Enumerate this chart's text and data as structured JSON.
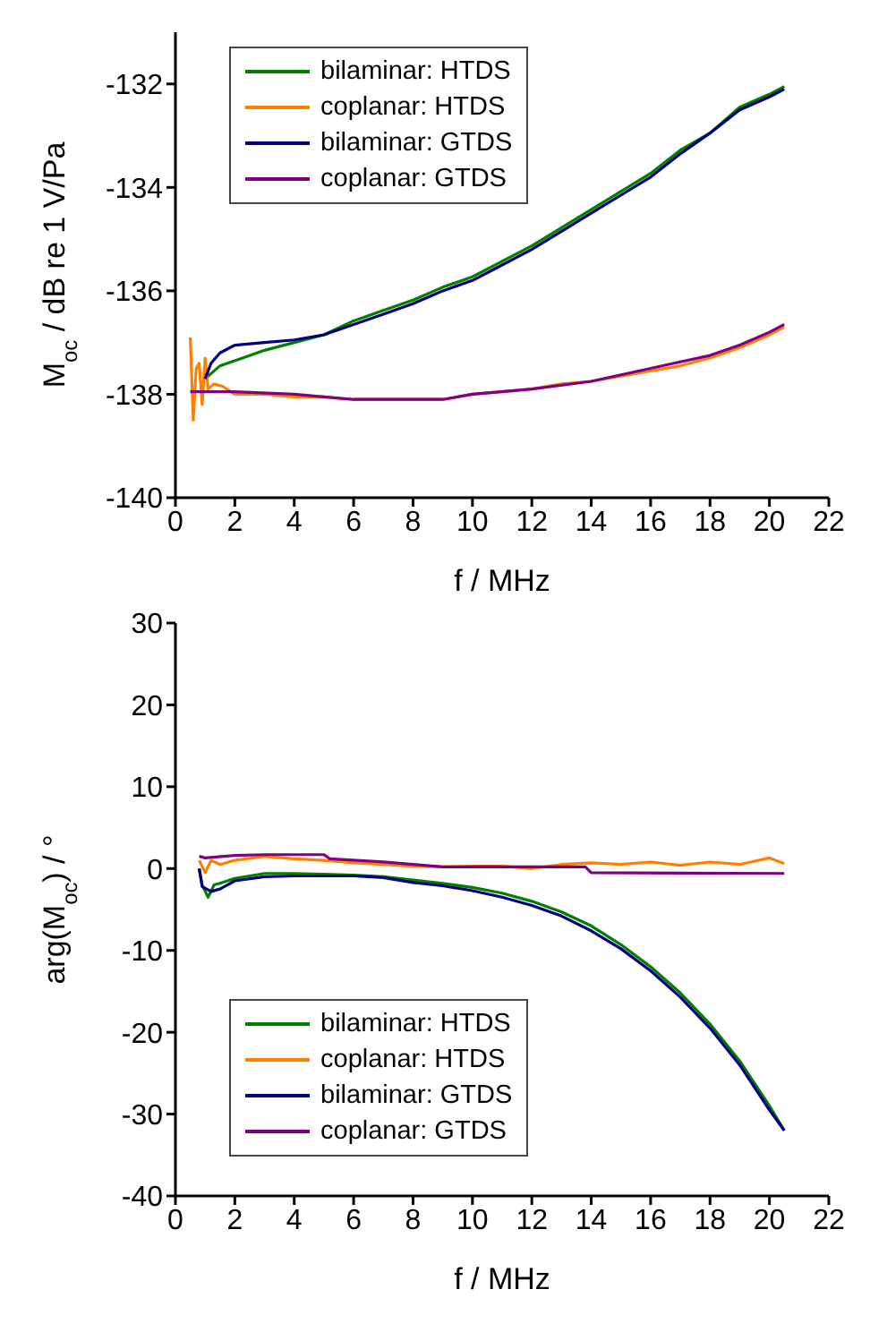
{
  "chart_data": [
    {
      "type": "line",
      "xlabel": "f / MHz",
      "ylabel": "M$_{oc}$ / dB re 1 V/Pa",
      "xlim": [
        0,
        22
      ],
      "xticks": [
        0,
        2,
        4,
        6,
        8,
        10,
        12,
        14,
        16,
        18,
        20,
        22
      ],
      "ylim": [
        -140,
        -131
      ],
      "yticks": [
        -140,
        -138,
        -136,
        -134,
        -132
      ],
      "legend": "top left",
      "series": [
        {
          "name": "bilaminar: HTDS",
          "color": "#008000",
          "x": [
            1.0,
            1.5,
            2,
            3,
            4,
            5,
            6,
            7,
            8,
            9,
            10,
            11,
            12,
            13,
            14,
            15,
            16,
            17,
            18,
            19,
            20,
            20.5
          ],
          "values": [
            -137.7,
            -137.45,
            -137.35,
            -137.15,
            -137.0,
            -136.85,
            -136.58,
            -136.38,
            -136.18,
            -135.93,
            -135.73,
            -135.43,
            -135.13,
            -134.78,
            -134.43,
            -134.08,
            -133.73,
            -133.28,
            -132.95,
            -132.45,
            -132.2,
            -132.05
          ]
        },
        {
          "name": "coplanar: HTDS",
          "color": "#ff8000",
          "x": [
            0.5,
            0.6,
            0.7,
            0.8,
            0.9,
            1.0,
            1.1,
            1.3,
            1.6,
            2,
            3,
            4,
            5,
            6,
            8,
            9,
            10,
            11,
            12,
            13,
            14,
            15,
            16,
            17,
            18,
            19,
            20,
            20.5
          ],
          "values": [
            -136.9,
            -138.5,
            -137.5,
            -137.4,
            -138.2,
            -137.3,
            -137.9,
            -137.8,
            -137.85,
            -138.0,
            -138.0,
            -138.05,
            -138.05,
            -138.1,
            -138.1,
            -138.1,
            -138.0,
            -137.95,
            -137.9,
            -137.8,
            -137.75,
            -137.65,
            -137.55,
            -137.45,
            -137.3,
            -137.1,
            -136.85,
            -136.7
          ]
        },
        {
          "name": "bilaminar: GTDS",
          "color": "#000080",
          "x": [
            1.0,
            1.2,
            1.5,
            2,
            3,
            4,
            5,
            6,
            7,
            8,
            9,
            10,
            11,
            12,
            13,
            14,
            15,
            16,
            17,
            18,
            19,
            20,
            20.5
          ],
          "values": [
            -137.7,
            -137.4,
            -137.2,
            -137.05,
            -137.0,
            -136.95,
            -136.85,
            -136.65,
            -136.45,
            -136.25,
            -136.0,
            -135.8,
            -135.5,
            -135.2,
            -134.85,
            -134.5,
            -134.15,
            -133.8,
            -133.35,
            -132.95,
            -132.5,
            -132.25,
            -132.1
          ]
        },
        {
          "name": "coplanar: GTDS",
          "color": "#800080",
          "x": [
            0.5,
            1,
            2,
            4,
            5,
            6,
            9,
            10,
            12,
            14,
            16,
            18,
            19,
            20,
            20.5
          ],
          "values": [
            -137.95,
            -137.95,
            -137.95,
            -138.0,
            -138.05,
            -138.1,
            -138.1,
            -138.0,
            -137.9,
            -137.75,
            -137.5,
            -137.25,
            -137.05,
            -136.8,
            -136.65
          ]
        }
      ]
    },
    {
      "type": "line",
      "xlabel": "f / MHz",
      "ylabel": "arg(M$_{oc}$) / °",
      "xlim": [
        0,
        22
      ],
      "xticks": [
        0,
        2,
        4,
        6,
        8,
        10,
        12,
        14,
        16,
        18,
        20,
        22
      ],
      "ylim": [
        -40,
        30
      ],
      "yticks": [
        -40,
        -30,
        -20,
        -10,
        0,
        10,
        20,
        30
      ],
      "legend": "bottom left",
      "series": [
        {
          "name": "bilaminar: HTDS",
          "color": "#008000",
          "x": [
            0.8,
            0.9,
            1.1,
            1.3,
            1.5,
            2,
            3,
            4,
            5,
            6,
            7,
            8,
            9,
            10,
            11,
            12,
            13,
            14,
            15,
            16,
            17,
            18,
            19,
            20,
            20.5
          ],
          "values": [
            0,
            -2,
            -3.5,
            -2,
            -1.8,
            -1.2,
            -0.6,
            -0.6,
            -0.7,
            -0.8,
            -1.0,
            -1.4,
            -1.8,
            -2.3,
            -3.0,
            -4.0,
            -5.3,
            -7.0,
            -9.3,
            -12.0,
            -15.2,
            -19.0,
            -23.5,
            -29,
            -32
          ]
        },
        {
          "name": "coplanar: HTDS",
          "color": "#ff8000",
          "x": [
            0.8,
            1,
            1.2,
            1.5,
            2,
            3,
            4,
            5,
            6,
            7,
            8,
            9,
            10,
            11,
            12,
            13,
            14,
            15,
            16,
            17,
            18,
            19,
            20,
            20.5
          ],
          "values": [
            1,
            -0.5,
            1,
            0.5,
            1,
            1.5,
            1.2,
            1,
            0.7,
            0.5,
            0.3,
            0.2,
            0.3,
            0.3,
            0,
            0.5,
            0.7,
            0.5,
            0.8,
            0.4,
            0.8,
            0.5,
            1.3,
            0.6
          ]
        },
        {
          "name": "bilaminar: GTDS",
          "color": "#000080",
          "x": [
            0.8,
            0.9,
            1.2,
            1.5,
            2,
            3,
            4,
            5,
            6,
            7,
            8,
            9,
            10,
            11,
            12,
            13,
            14,
            15,
            16,
            17,
            18,
            19,
            20,
            20.5
          ],
          "values": [
            0,
            -2.2,
            -2.8,
            -2.5,
            -1.5,
            -1.0,
            -0.9,
            -0.9,
            -0.9,
            -1.1,
            -1.7,
            -2.1,
            -2.7,
            -3.5,
            -4.5,
            -5.8,
            -7.6,
            -9.8,
            -12.5,
            -15.7,
            -19.5,
            -24,
            -29.5,
            -32
          ]
        },
        {
          "name": "coplanar: GTDS",
          "color": "#800080",
          "x": [
            0.8,
            1,
            2,
            3,
            5,
            5.2,
            7,
            9,
            13.8,
            14,
            20.5
          ],
          "values": [
            1.5,
            1.3,
            1.6,
            1.7,
            1.7,
            1.2,
            0.8,
            0.2,
            0.2,
            -0.5,
            -0.6
          ]
        }
      ]
    }
  ]
}
